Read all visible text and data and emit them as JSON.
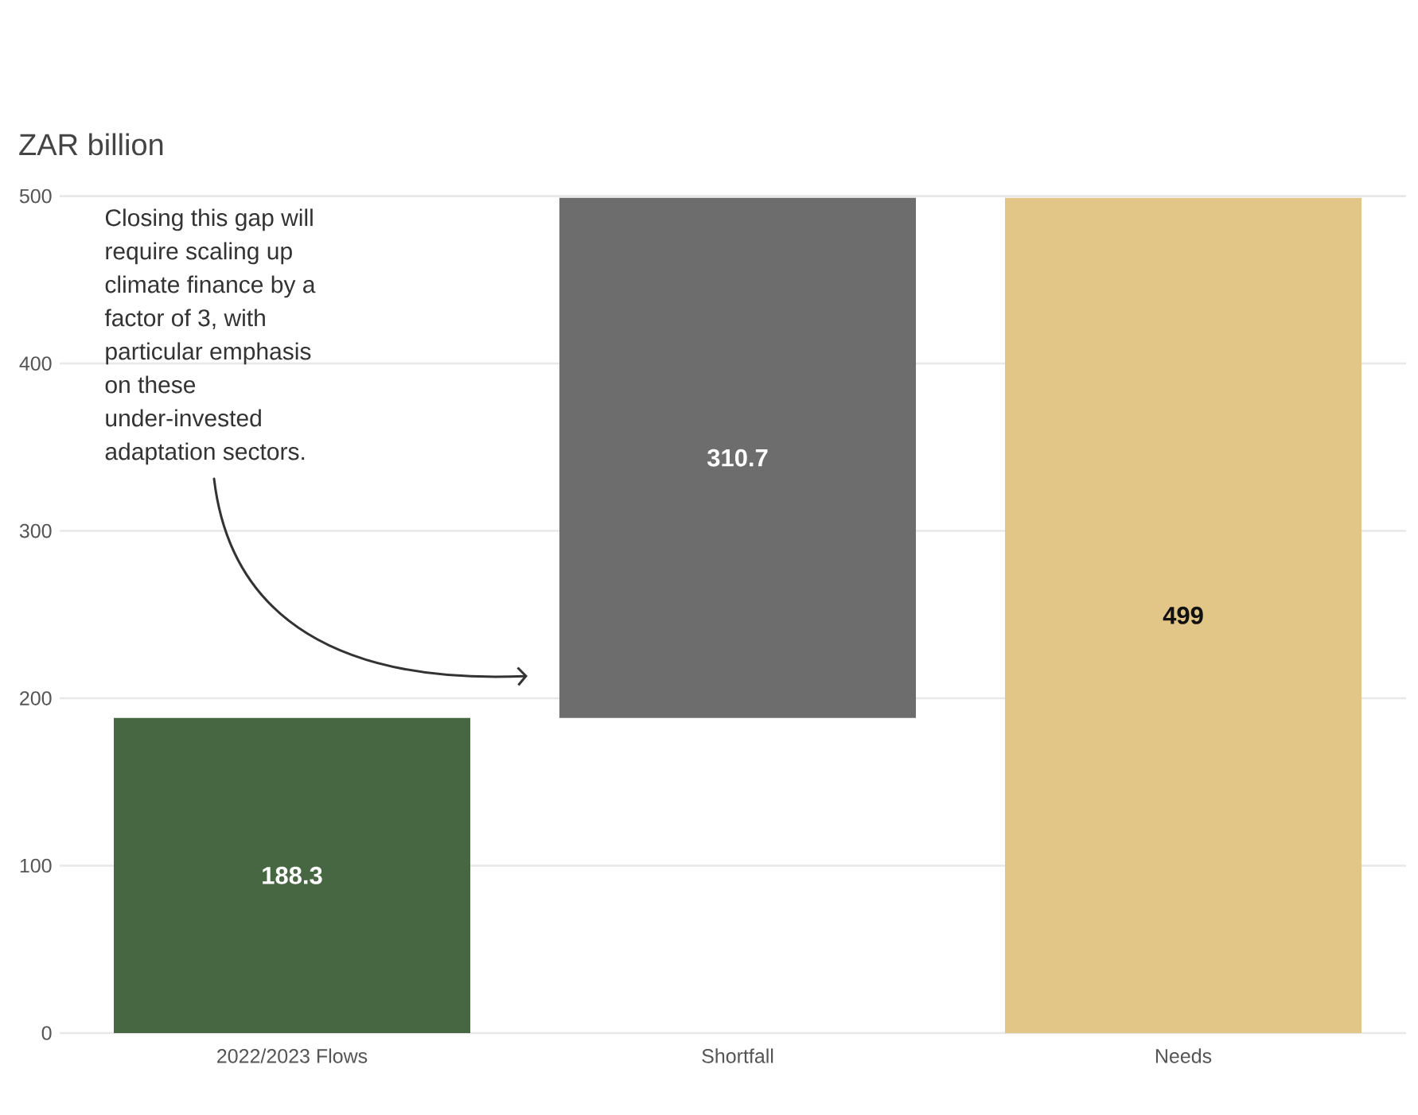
{
  "chart_data": {
    "type": "bar",
    "ylabel": "ZAR billion",
    "categories": [
      "2022/2023 Flows",
      "Shortfall",
      "Needs"
    ],
    "values": [
      188.3,
      310.7,
      499
    ],
    "base": [
      0,
      188.3,
      0
    ],
    "colors": [
      "#466741",
      "#6d6d6d",
      "#e2c688"
    ],
    "ylim": [
      0,
      500
    ],
    "yticks": [
      0,
      100,
      200,
      300,
      400,
      500
    ],
    "grid": "y",
    "data_labels": true,
    "annotations": [
      "Closing this gap will require scaling up climate finance by a factor of 3, with particular emphasis on these under-invested adaptation sectors."
    ]
  }
}
